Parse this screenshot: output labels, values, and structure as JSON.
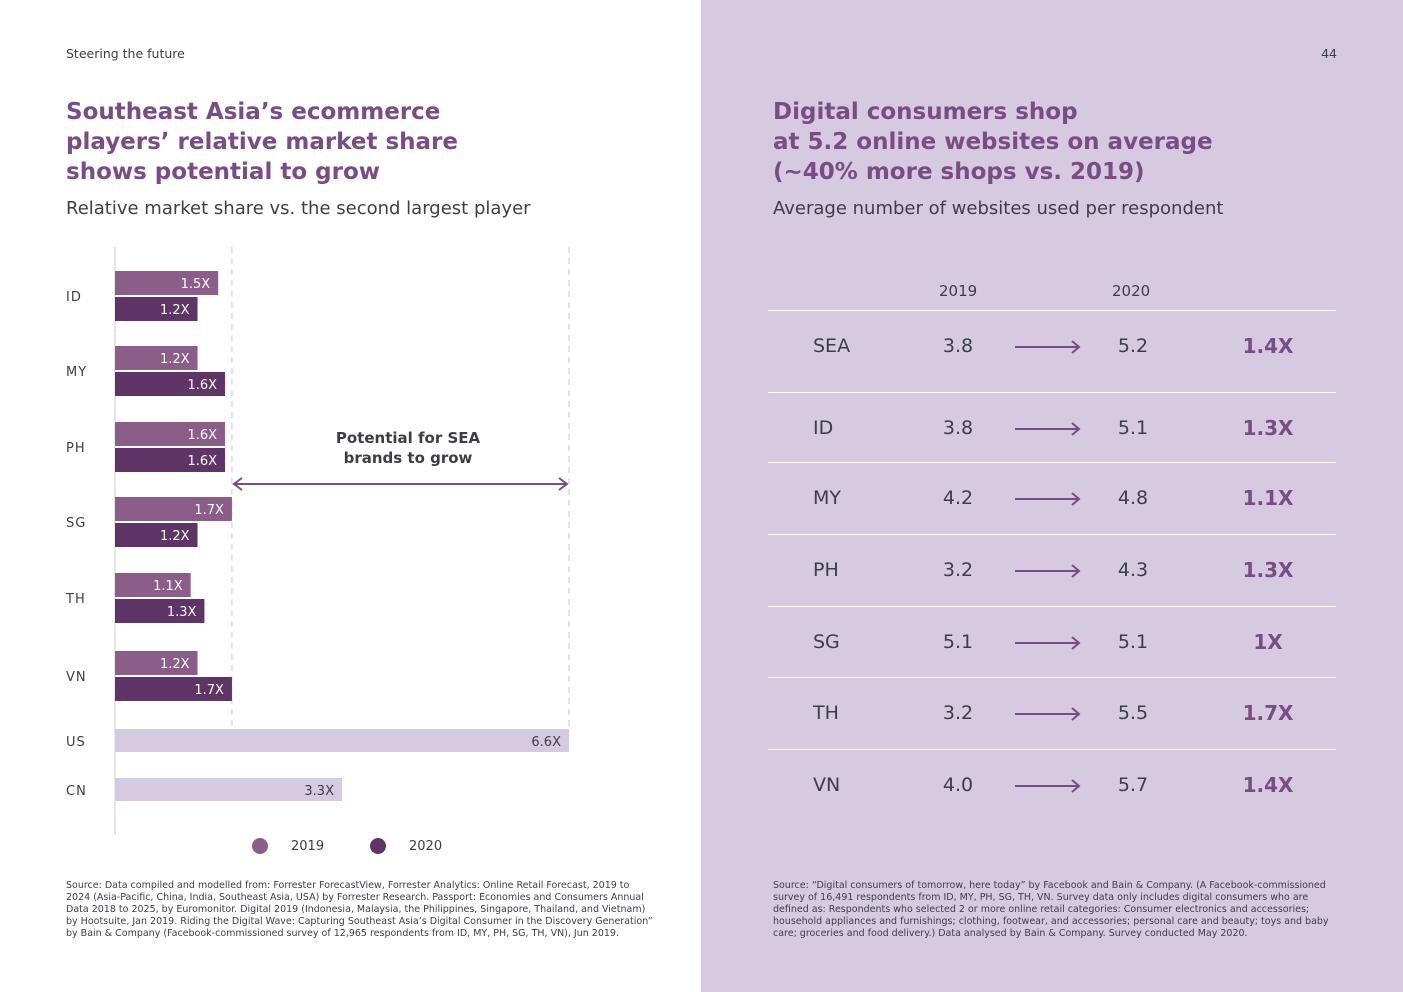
{
  "header": {
    "running_title": "Steering the future",
    "page_number": "44"
  },
  "left": {
    "title": "Southeast Asia’s ecommerce\nplayers’ relative market share\nshows potential to grow",
    "subtitle": "Relative market share vs. the second largest player",
    "annotation": [
      "Potential for SEA",
      "brands to grow"
    ],
    "source": "Source: Data compiled and modelled from: Forrester ForecastView, Forrester Analytics: Online Retail Forecast, 2019 to 2024 (Asia-Pacific, China, India, Southeast Asia, USA) by Forrester Research. Passport: Economies and Consumers Annual Data 2018 to 2025, by Euromonitor. Digital 2019 (Indonesia, Malaysia, the Philippines, Singapore, Thailand, and Vietnam) by Hootsuite, Jan 2019. Riding the Digital Wave: Capturing Southeast Asia’s Digital Consumer in the Discovery Generation” by Bain & Company (Facebook-commissioned survey of 12,965 respondents from ID, MY, PH, SG, TH, VN), Jun 2019."
  },
  "chart_data": [
    {
      "type": "bar",
      "orientation": "horizontal",
      "title": "Relative market share vs. the second largest player",
      "categories": [
        "ID",
        "MY",
        "PH",
        "SG",
        "TH",
        "VN"
      ],
      "series": [
        {
          "name": "2019",
          "color": "#8b5e8a",
          "values": [
            1.5,
            1.2,
            1.6,
            1.7,
            1.1,
            1.2
          ],
          "labels": [
            "1.5X",
            "1.2X",
            "1.6X",
            "1.7X",
            "1.1X",
            "1.2X"
          ]
        },
        {
          "name": "2020",
          "color": "#5e3566",
          "values": [
            1.2,
            1.6,
            1.6,
            1.2,
            1.3,
            1.7
          ],
          "labels": [
            "1.2X",
            "1.6X",
            "1.6X",
            "1.2X",
            "1.3X",
            "1.7X"
          ]
        }
      ],
      "benchmarks": [
        {
          "category": "US",
          "value": 6.6,
          "label": "6.6X",
          "color": "#d5cadf"
        },
        {
          "category": "CN",
          "value": 3.3,
          "label": "3.3X",
          "color": "#d5cadf"
        }
      ],
      "reference_lines": [
        1.7,
        6.6
      ],
      "xlim": [
        0,
        6.6
      ],
      "legend": [
        "2019",
        "2020"
      ],
      "legend_position": "bottom"
    },
    {
      "type": "table",
      "title": "Average number of websites used per respondent",
      "columns": [
        "",
        "2019",
        "",
        "2020",
        ""
      ],
      "rows": [
        {
          "region": "SEA",
          "y2019": 3.8,
          "y2020": 5.2,
          "growth": "1.4X"
        },
        {
          "region": "ID",
          "y2019": 3.8,
          "y2020": 5.1,
          "growth": "1.3X"
        },
        {
          "region": "MY",
          "y2019": 4.2,
          "y2020": 4.8,
          "growth": "1.1X"
        },
        {
          "region": "PH",
          "y2019": 3.2,
          "y2020": 4.3,
          "growth": "1.3X"
        },
        {
          "region": "SG",
          "y2019": 5.1,
          "y2020": 5.1,
          "growth": "1X"
        },
        {
          "region": "TH",
          "y2019": 3.2,
          "y2020": 5.5,
          "growth": "1.7X"
        },
        {
          "region": "VN",
          "y2019": 4.0,
          "y2020": 5.7,
          "growth": "1.4X"
        }
      ]
    }
  ],
  "right": {
    "title": "Digital consumers shop\nat 5.2 online websites on average\n(~40% more shops vs. 2019)",
    "subtitle": "Average number of websites used per respondent",
    "table_headers": {
      "y2019": "2019",
      "y2020": "2020"
    },
    "rows_text": [
      {
        "region": "SEA",
        "v2019": "3.8",
        "v2020": "5.2",
        "growth": "1.4X"
      },
      {
        "region": "ID",
        "v2019": "3.8",
        "v2020": "5.1",
        "growth": "1.3X"
      },
      {
        "region": "MY",
        "v2019": "4.2",
        "v2020": "4.8",
        "growth": "1.1X"
      },
      {
        "region": "PH",
        "v2019": "3.2",
        "v2020": "4.3",
        "growth": "1.3X"
      },
      {
        "region": "SG",
        "v2019": "5.1",
        "v2020": "5.1",
        "growth": "1X"
      },
      {
        "region": "TH",
        "v2019": "3.2",
        "v2020": "5.5",
        "growth": "1.7X"
      },
      {
        "region": "VN",
        "v2019": "4.0",
        "v2020": "5.7",
        "growth": "1.4X"
      }
    ],
    "source": "Source: “Digital consumers of tomorrow, here today” by Facebook and Bain & Company. (A Facebook-commissioned survey of 16,491 respondents from ID, MY, PH, SG, TH, VN. Survey data only includes digital consumers who are defined as: Respondents who selected 2 or more online retail categories: Consumer electronics and accessories; household appliances and furnishings; clothing, footwear, and accessories; personal care and beauty; toys and baby care; groceries and food delivery.) Data analysed by Bain & Company. Survey conducted May 2020."
  },
  "colors": {
    "accent": "#7a4c86",
    "bar_2019": "#8b5e8a",
    "bar_2020": "#5e3566",
    "benchmark": "#d5cadf",
    "right_bg": "#d5cadf"
  }
}
